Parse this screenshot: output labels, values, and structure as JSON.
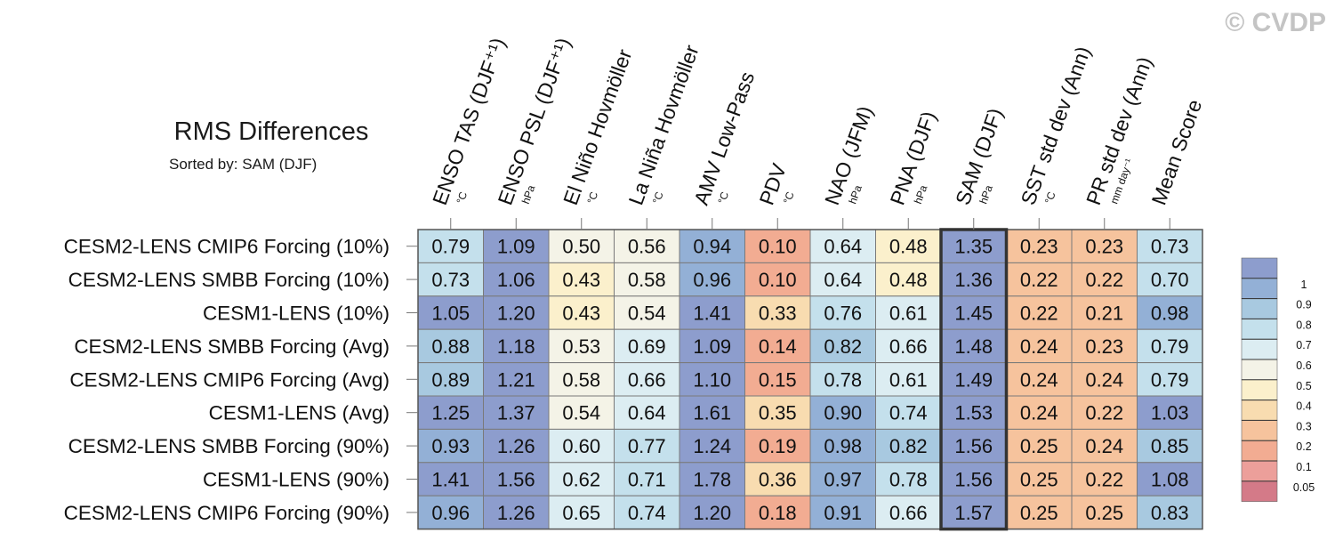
{
  "watermark": "© CVDP",
  "chart_data": {
    "type": "heatmap",
    "title": "RMS Differences",
    "subtitle": "Sorted by: SAM (DJF)",
    "columns": [
      {
        "label": "ENSO TAS (DJF⁺¹)",
        "unit": "°C"
      },
      {
        "label": "ENSO PSL (DJF⁺¹)",
        "unit": "hPa"
      },
      {
        "label": "El Niño Hovmöller",
        "unit": "°C"
      },
      {
        "label": "La Niña Hovmöller",
        "unit": "°C"
      },
      {
        "label": "AMV Low-Pass",
        "unit": "°C"
      },
      {
        "label": "PDV",
        "unit": "°C"
      },
      {
        "label": "NAO (JFM)",
        "unit": "hPa"
      },
      {
        "label": "PNA (DJF)",
        "unit": "hPa"
      },
      {
        "label": "SAM (DJF)",
        "unit": "hPa"
      },
      {
        "label": "SST std dev (Ann)",
        "unit": "°C"
      },
      {
        "label": "PR std dev (Ann)",
        "unit": "mm day⁻¹"
      },
      {
        "label": "Mean Score",
        "unit": ""
      }
    ],
    "rows": [
      "CESM2-LENS CMIP6 Forcing (10%)",
      "CESM2-LENS SMBB Forcing (10%)",
      "CESM1-LENS (10%)",
      "CESM2-LENS SMBB Forcing (Avg)",
      "CESM2-LENS CMIP6 Forcing (Avg)",
      "CESM1-LENS (Avg)",
      "CESM2-LENS SMBB Forcing (90%)",
      "CESM1-LENS (90%)",
      "CESM2-LENS CMIP6 Forcing (90%)"
    ],
    "values": [
      [
        "0.79",
        "1.09",
        "0.50",
        "0.56",
        "0.94",
        "0.10",
        "0.64",
        "0.48",
        "1.35",
        "0.23",
        "0.23",
        "0.73"
      ],
      [
        "0.73",
        "1.06",
        "0.43",
        "0.58",
        "0.96",
        "0.10",
        "0.64",
        "0.48",
        "1.36",
        "0.22",
        "0.22",
        "0.70"
      ],
      [
        "1.05",
        "1.20",
        "0.43",
        "0.54",
        "1.41",
        "0.33",
        "0.76",
        "0.61",
        "1.45",
        "0.22",
        "0.21",
        "0.98"
      ],
      [
        "0.88",
        "1.18",
        "0.53",
        "0.69",
        "1.09",
        "0.14",
        "0.82",
        "0.66",
        "1.48",
        "0.24",
        "0.23",
        "0.79"
      ],
      [
        "0.89",
        "1.21",
        "0.58",
        "0.66",
        "1.10",
        "0.15",
        "0.78",
        "0.61",
        "1.49",
        "0.24",
        "0.24",
        "0.79"
      ],
      [
        "1.25",
        "1.37",
        "0.54",
        "0.64",
        "1.61",
        "0.35",
        "0.90",
        "0.74",
        "1.53",
        "0.24",
        "0.22",
        "1.03"
      ],
      [
        "0.93",
        "1.26",
        "0.60",
        "0.77",
        "1.24",
        "0.19",
        "0.98",
        "0.82",
        "1.56",
        "0.25",
        "0.24",
        "0.85"
      ],
      [
        "1.41",
        "1.56",
        "0.62",
        "0.71",
        "1.78",
        "0.36",
        "0.97",
        "0.78",
        "1.56",
        "0.25",
        "0.22",
        "1.08"
      ],
      [
        "0.96",
        "1.26",
        "0.65",
        "0.74",
        "1.20",
        "0.18",
        "0.91",
        "0.66",
        "1.57",
        "0.25",
        "0.25",
        "0.83"
      ]
    ],
    "highlighted_column": "SAM (DJF)",
    "colorbar": {
      "levels": [
        0.05,
        0.1,
        0.2,
        0.3,
        0.4,
        0.5,
        0.6,
        0.7,
        0.8,
        0.9,
        1
      ],
      "labels": [
        "0.05",
        "0.1",
        "0.2",
        "0.3",
        "0.4",
        "0.5",
        "0.6",
        "0.7",
        "0.8",
        "0.9",
        "1"
      ],
      "colors": [
        "#d47a88",
        "#ec9f9a",
        "#f2ac92",
        "#f6c39d",
        "#f8dcb0",
        "#fbf0cc",
        "#f4f3e7",
        "#dcedf2",
        "#c4e0ec",
        "#a8c9e0",
        "#93b0d6",
        "#8d9dcd"
      ]
    },
    "grid_color": "#7a7a7a",
    "highlight_color": "#333333"
  }
}
